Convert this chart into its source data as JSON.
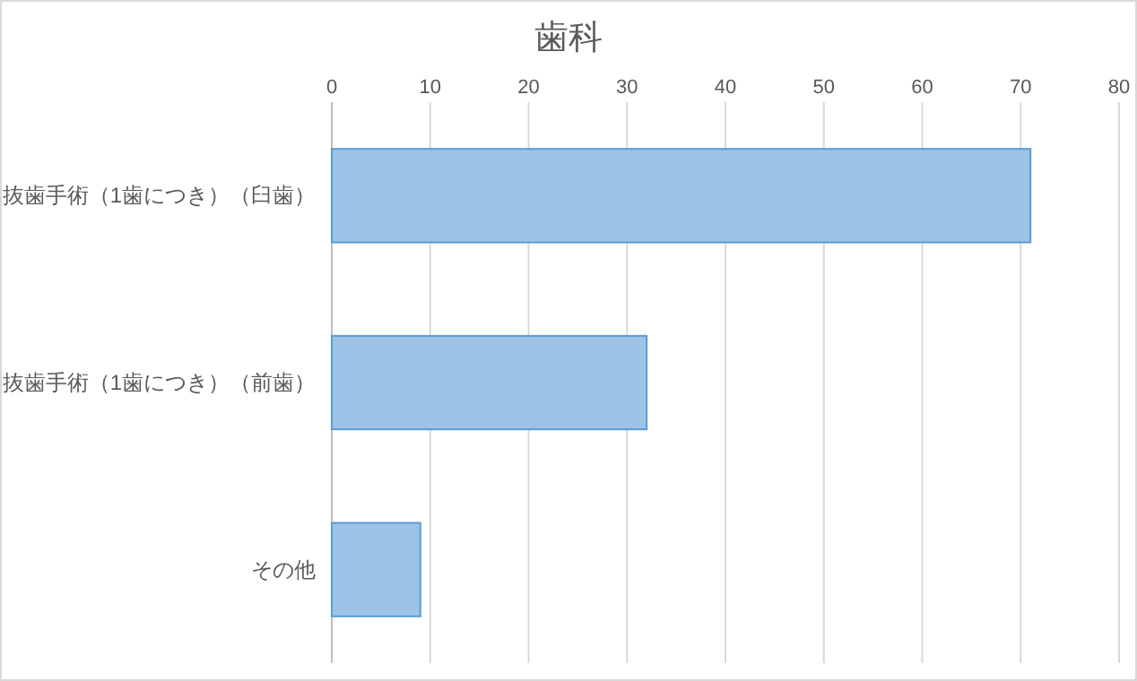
{
  "chart_data": {
    "type": "bar",
    "orientation": "horizontal",
    "title": "歯科",
    "categories": [
      "抜歯手術（1歯につき）（臼歯）",
      "抜歯手術（1歯につき）（前歯）",
      "その他"
    ],
    "values": [
      71,
      32,
      9
    ],
    "color": "#9dc3e6",
    "xlim": [
      0,
      80
    ],
    "xticks": [
      0,
      10,
      20,
      30,
      40,
      50,
      60,
      70,
      80
    ],
    "grid": "x"
  }
}
